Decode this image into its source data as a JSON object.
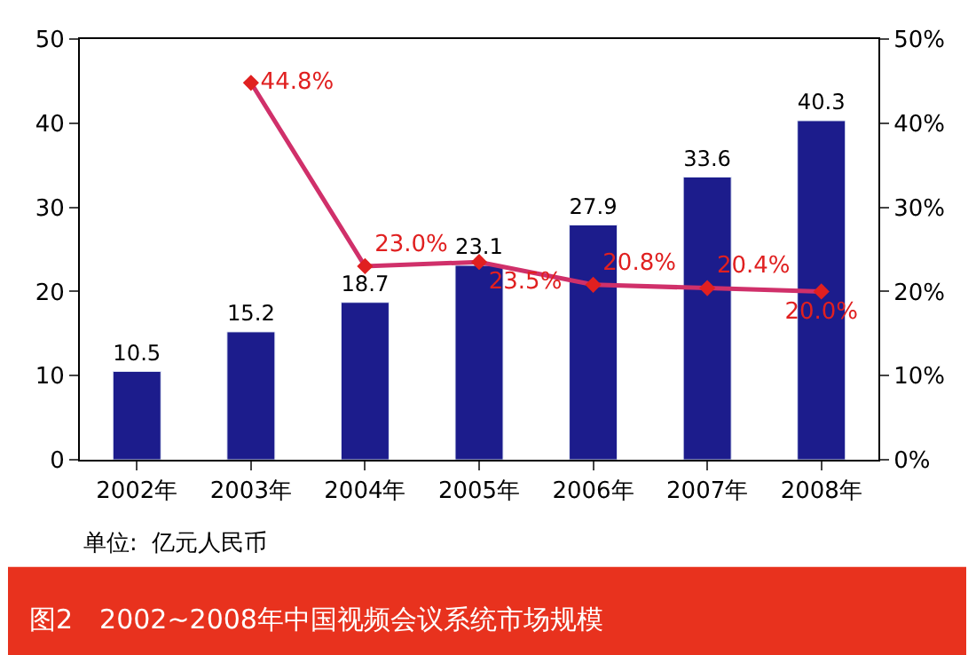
{
  "chart_data": {
    "type": "bar",
    "title": "图2　2002~2008年中国视频会议系统市场规模",
    "categories": [
      "2002年",
      "2003年",
      "2004年",
      "2005年",
      "2006年",
      "2007年",
      "2008年"
    ],
    "series": [
      {
        "color": "#1c1c8c",
        "values": [
          10.5,
          15.2,
          18.7,
          23.1,
          27.9,
          33.6,
          40.3
        ]
      },
      {
        "type": "line",
        "axis": "y2",
        "color": "#d0306a",
        "marker": "diamond",
        "values": [
          null,
          44.8,
          23.0,
          23.5,
          20.8,
          20.4,
          20.0
        ],
        "value_labels": [
          null,
          "44.8%",
          "23.0%",
          "23.5%",
          "20.8%",
          "20.4%",
          "20.0%"
        ]
      }
    ],
    "data_labels": true,
    "ylim": [
      0,
      50
    ],
    "yticks": [
      0,
      10,
      20,
      30,
      40,
      50
    ],
    "y2lim": [
      0,
      50
    ],
    "y2ticks": [
      {
        "value": 0,
        "label": "0%"
      },
      {
        "value": 10,
        "label": "10%"
      },
      {
        "value": 20,
        "label": "20%"
      },
      {
        "value": 30,
        "label": "30%"
      },
      {
        "value": 40,
        "label": "40%"
      },
      {
        "value": 50,
        "label": "50%"
      }
    ],
    "annotations": [
      "单位:  亿元人民币"
    ]
  }
}
